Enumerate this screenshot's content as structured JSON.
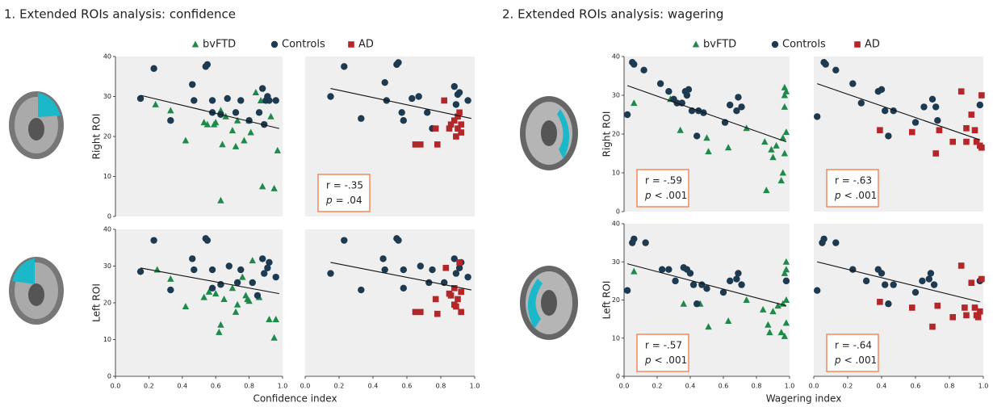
{
  "chart_data": [
    {
      "type": "scatter",
      "title": "1. Extended ROIs analysis: confidence",
      "xlabel": "Confidence index",
      "xlim": [
        0,
        1
      ],
      "xticks": [
        {
          "value": 0,
          "label": "0.0"
        },
        {
          "value": 0.2,
          "label": "0.2"
        },
        {
          "value": 0.4,
          "label": "0.4"
        },
        {
          "value": 0.6,
          "label": "0.6"
        },
        {
          "value": 0.8,
          "label": "0.8"
        },
        {
          "value": 1,
          "label": "1.0"
        }
      ],
      "ylim": [
        0,
        40
      ],
      "yticks": [
        0,
        10,
        20,
        30,
        40
      ],
      "legend": [
        {
          "name": "bvFTD",
          "color": "#1e8a4a",
          "marker": "triangle"
        },
        {
          "name": "Controls",
          "color": "#1d3a50",
          "marker": "circle"
        },
        {
          "name": "AD",
          "color": "#b3262a",
          "marker": "square"
        }
      ],
      "panels": [
        {
          "ylabel": "Right ROI",
          "series": {
            "bvFTD": {
              "x": [
                0.24,
                0.33,
                0.42,
                0.53,
                0.55,
                0.59,
                0.63,
                0.64,
                0.66,
                0.7,
                0.72,
                0.73,
                0.77,
                0.8,
                0.84,
                0.87,
                0.88,
                0.93,
                0.95,
                0.97,
                0.63,
                0.6,
                0.81
              ],
              "y": [
                28,
                26.5,
                19,
                23.5,
                23,
                23,
                26.5,
                18,
                25,
                21.5,
                17.5,
                24,
                19,
                24,
                31,
                29,
                7.5,
                25,
                7,
                16.5,
                4,
                23.5,
                21
              ]
            },
            "Controls": {
              "x": [
                0.15,
                0.23,
                0.33,
                0.46,
                0.47,
                0.54,
                0.55,
                0.58,
                0.58,
                0.63,
                0.67,
                0.72,
                0.75,
                0.8,
                0.86,
                0.88,
                0.9,
                0.91,
                0.92,
                0.96,
                0.89
              ],
              "y": [
                29.5,
                37,
                24,
                33,
                29,
                37.5,
                38,
                29,
                26,
                25.5,
                29.5,
                26,
                29,
                24,
                26,
                32,
                29,
                30,
                29,
                29,
                23
              ]
            }
          },
          "fit": {
            "x": [
              0.15,
              0.98
            ],
            "y": [
              30.3,
              22
            ]
          }
        },
        {
          "series": {
            "Controls": {
              "x": [
                0.15,
                0.23,
                0.33,
                0.47,
                0.48,
                0.54,
                0.55,
                0.57,
                0.58,
                0.63,
                0.67,
                0.72,
                0.75,
                0.88,
                0.9,
                0.91,
                0.96,
                0.89
              ],
              "y": [
                30,
                37.5,
                24.5,
                33.5,
                29,
                38,
                38.5,
                26,
                24,
                29.5,
                30,
                26,
                22,
                32.5,
                30.5,
                31,
                29,
                28
              ]
            },
            "AD": {
              "x": [
                0.65,
                0.68,
                0.77,
                0.78,
                0.82,
                0.85,
                0.86,
                0.88,
                0.89,
                0.9,
                0.9,
                0.91,
                0.92,
                0.92
              ],
              "y": [
                18,
                18,
                22,
                18,
                29,
                22,
                23,
                24,
                20,
                22,
                25,
                26,
                21,
                23
              ]
            }
          },
          "fit": {
            "x": [
              0.15,
              0.98
            ],
            "y": [
              32,
              24.5
            ]
          },
          "annotation": {
            "r": "r = -.35",
            "p": "p",
            "p_value": "= .04"
          }
        },
        {
          "ylabel": "Left ROI",
          "series": {
            "bvFTD": {
              "x": [
                0.25,
                0.33,
                0.42,
                0.53,
                0.56,
                0.6,
                0.62,
                0.63,
                0.65,
                0.7,
                0.72,
                0.73,
                0.76,
                0.79,
                0.8,
                0.82,
                0.86,
                0.92,
                0.96,
                0.95,
                0.78
              ],
              "y": [
                29,
                26.5,
                19,
                21.5,
                23,
                22.5,
                12,
                14,
                21,
                24,
                17.5,
                19.5,
                27,
                21,
                20.5,
                31.5,
                21.5,
                15.5,
                15.5,
                10.5,
                22
              ]
            },
            "Controls": {
              "x": [
                0.15,
                0.23,
                0.33,
                0.46,
                0.47,
                0.54,
                0.55,
                0.58,
                0.58,
                0.63,
                0.68,
                0.73,
                0.75,
                0.82,
                0.85,
                0.88,
                0.89,
                0.91,
                0.92,
                0.96
              ],
              "y": [
                28.5,
                37,
                23.5,
                32,
                29,
                37.5,
                37,
                29,
                24,
                25,
                30,
                25.5,
                29,
                25.5,
                22,
                32,
                28,
                29.5,
                31,
                27
              ]
            }
          },
          "fit": {
            "x": [
              0.15,
              0.98
            ],
            "y": [
              29.5,
              22.5
            ]
          }
        },
        {
          "series": {
            "Controls": {
              "x": [
                0.15,
                0.23,
                0.33,
                0.46,
                0.47,
                0.54,
                0.55,
                0.58,
                0.58,
                0.68,
                0.73,
                0.75,
                0.82,
                0.88,
                0.89,
                0.91,
                0.92,
                0.96
              ],
              "y": [
                28,
                37,
                23.5,
                32,
                29,
                37.5,
                37,
                29,
                24,
                30,
                25.5,
                29,
                25.5,
                32,
                28,
                29.5,
                31,
                27
              ]
            },
            "AD": {
              "x": [
                0.65,
                0.68,
                0.77,
                0.78,
                0.83,
                0.85,
                0.86,
                0.88,
                0.89,
                0.9,
                0.91,
                0.92,
                0.92,
                0.88
              ],
              "y": [
                17.5,
                17.5,
                21,
                17,
                29.5,
                22.5,
                22,
                19.5,
                19,
                21,
                31,
                23,
                17.5,
                24
              ]
            }
          },
          "fit": {
            "x": [
              0.15,
              0.98
            ],
            "y": [
              31,
              23.5
            ]
          }
        }
      ]
    },
    {
      "type": "scatter",
      "title": "2. Extended ROIs analysis: wagering",
      "xlabel": "Wagering index",
      "xlim": [
        0,
        1
      ],
      "xticks": [
        {
          "value": 0,
          "label": "0.0"
        },
        {
          "value": 0.2,
          "label": "0.2"
        },
        {
          "value": 0.4,
          "label": "0.4"
        },
        {
          "value": 0.6,
          "label": "0.6"
        },
        {
          "value": 0.8,
          "label": "0.8"
        },
        {
          "value": 1,
          "label": "1.0"
        }
      ],
      "ylim": [
        0,
        40
      ],
      "yticks": [
        0,
        10,
        20,
        30,
        40
      ],
      "legend": [
        {
          "name": "bvFTD",
          "color": "#1e8a4a",
          "marker": "triangle"
        },
        {
          "name": "Controls",
          "color": "#1d3a50",
          "marker": "circle"
        },
        {
          "name": "AD",
          "color": "#b3262a",
          "marker": "square"
        }
      ],
      "panels": [
        {
          "ylabel": "Right ROI",
          "series": {
            "bvFTD": {
              "x": [
                0.06,
                0.28,
                0.34,
                0.51,
                0.5,
                0.63,
                0.74,
                0.85,
                0.86,
                0.89,
                0.9,
                0.92,
                0.95,
                0.96,
                0.97,
                0.97,
                0.97,
                0.98,
                0.98,
                0.97,
                0.96
              ],
              "y": [
                28,
                29,
                21,
                15.5,
                19,
                16.5,
                21.5,
                18,
                5.5,
                16,
                14,
                17,
                8,
                10,
                15,
                30,
                32,
                31,
                20.5,
                27,
                19
              ]
            },
            "Controls": {
              "x": [
                0.02,
                0.05,
                0.06,
                0.12,
                0.22,
                0.27,
                0.32,
                0.37,
                0.38,
                0.39,
                0.41,
                0.45,
                0.44,
                0.48,
                0.61,
                0.64,
                0.68,
                0.69,
                0.71,
                0.35,
                0.3
              ],
              "y": [
                25,
                38.5,
                38,
                36.5,
                33,
                31,
                28,
                31,
                30,
                31.5,
                26,
                26,
                19.5,
                25.5,
                23,
                27.5,
                26,
                29.5,
                27,
                28,
                29
              ]
            }
          },
          "fit": {
            "x": [
              0.02,
              0.98
            ],
            "y": [
              32.5,
              18
            ]
          },
          "annotation": {
            "r": "r = -.59",
            "p": "p",
            "p_value": "< .001"
          }
        },
        {
          "series": {
            "Controls": {
              "x": [
                0.02,
                0.06,
                0.07,
                0.13,
                0.23,
                0.28,
                0.38,
                0.4,
                0.42,
                0.44,
                0.47,
                0.6,
                0.65,
                0.7,
                0.72,
                0.73,
                0.98
              ],
              "y": [
                24.5,
                38.5,
                38,
                36.5,
                33,
                28,
                31,
                31.5,
                26,
                19.5,
                26,
                23,
                27,
                29,
                27,
                23.5,
                27.5
              ]
            },
            "AD": {
              "x": [
                0.39,
                0.58,
                0.72,
                0.74,
                0.82,
                0.87,
                0.9,
                0.9,
                0.93,
                0.95,
                0.96,
                0.98,
                0.99,
                0.99
              ],
              "y": [
                21,
                20.5,
                15,
                21,
                18,
                31,
                21.5,
                18,
                25,
                21,
                18,
                17,
                16.5,
                30
              ]
            }
          },
          "fit": {
            "x": [
              0.02,
              0.98
            ],
            "y": [
              33,
              18.5
            ]
          },
          "annotation": {
            "r": "r = -.63",
            "p": "p",
            "p_value": "< .001"
          }
        },
        {
          "ylabel": "Left ROI",
          "series": {
            "bvFTD": {
              "x": [
                0.06,
                0.36,
                0.46,
                0.51,
                0.63,
                0.74,
                0.84,
                0.87,
                0.88,
                0.9,
                0.93,
                0.95,
                0.96,
                0.97,
                0.98,
                0.98,
                0.97,
                0.98,
                0.98
              ],
              "y": [
                27.5,
                19,
                19,
                13,
                14.5,
                20,
                17.5,
                13.5,
                11.5,
                17,
                18.5,
                11.5,
                19,
                10.5,
                28,
                30,
                27,
                20,
                14
              ]
            },
            "Controls": {
              "x": [
                0.02,
                0.05,
                0.06,
                0.13,
                0.23,
                0.27,
                0.31,
                0.36,
                0.38,
                0.4,
                0.42,
                0.44,
                0.47,
                0.5,
                0.6,
                0.64,
                0.68,
                0.69,
                0.71,
                0.98
              ],
              "y": [
                22.5,
                35,
                36,
                35,
                28,
                28,
                25,
                28.5,
                28,
                27,
                24,
                19,
                24,
                23,
                22,
                25,
                25.5,
                27,
                24,
                25
              ]
            }
          },
          "fit": {
            "x": [
              0.02,
              0.98
            ],
            "y": [
              29.5,
              18.5
            ]
          },
          "annotation": {
            "r": "r = -.57",
            "p": "p",
            "p_value": "< .001"
          }
        },
        {
          "series": {
            "Controls": {
              "x": [
                0.02,
                0.05,
                0.06,
                0.13,
                0.23,
                0.31,
                0.38,
                0.4,
                0.42,
                0.44,
                0.47,
                0.6,
                0.64,
                0.68,
                0.69,
                0.71,
                0.98
              ],
              "y": [
                22.5,
                35,
                36,
                35,
                28,
                25,
                28,
                27,
                24,
                19,
                24,
                22,
                25,
                25.5,
                27,
                24,
                25
              ]
            },
            "AD": {
              "x": [
                0.39,
                0.58,
                0.7,
                0.73,
                0.82,
                0.87,
                0.89,
                0.9,
                0.93,
                0.95,
                0.96,
                0.97,
                0.98,
                0.99
              ],
              "y": [
                19.5,
                18,
                13,
                18.5,
                15.5,
                29,
                18,
                16,
                24.5,
                18,
                16,
                15.5,
                17,
                25.5
              ]
            }
          },
          "fit": {
            "x": [
              0.02,
              0.98
            ],
            "y": [
              30,
              19.5
            ]
          },
          "annotation": {
            "r": "r = -.64",
            "p": "p",
            "p_value": "< .001"
          }
        }
      ]
    }
  ]
}
